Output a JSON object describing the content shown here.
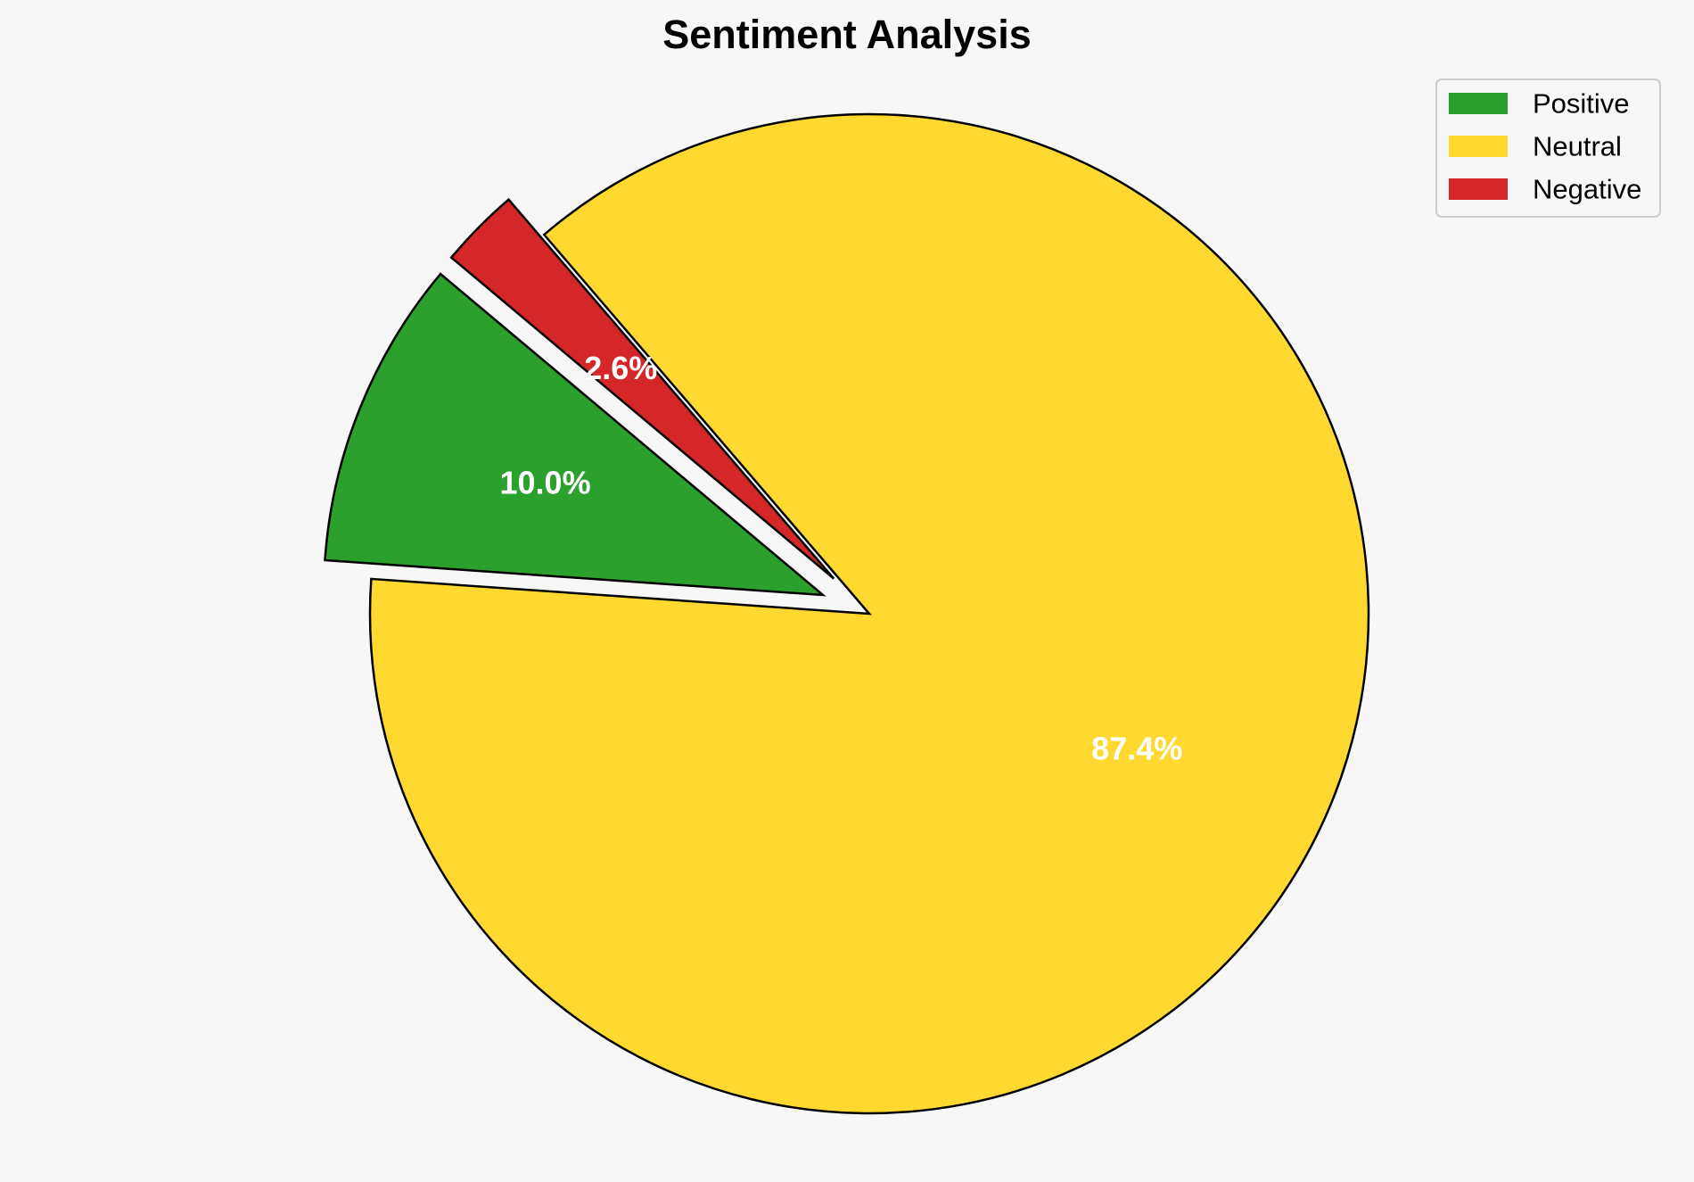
{
  "chart_data": {
    "type": "pie",
    "title": "Sentiment Analysis",
    "categories": [
      "Positive",
      "Neutral",
      "Negative"
    ],
    "values": [
      10.0,
      87.4,
      2.6
    ],
    "value_labels": [
      "10.0%",
      "87.4%",
      "2.6%"
    ],
    "exploded": [
      true,
      false,
      true
    ],
    "colors": [
      "#2ca02c",
      "#ffd92f",
      "#d62728"
    ],
    "edge_color": "#000000",
    "label_color": "#ffffff",
    "legend_position": "top-right",
    "start_angle_deg": 140,
    "direction": "counterclockwise"
  },
  "colors": {
    "background": "#f7f7f7",
    "legend_frame": "#cccccc"
  }
}
